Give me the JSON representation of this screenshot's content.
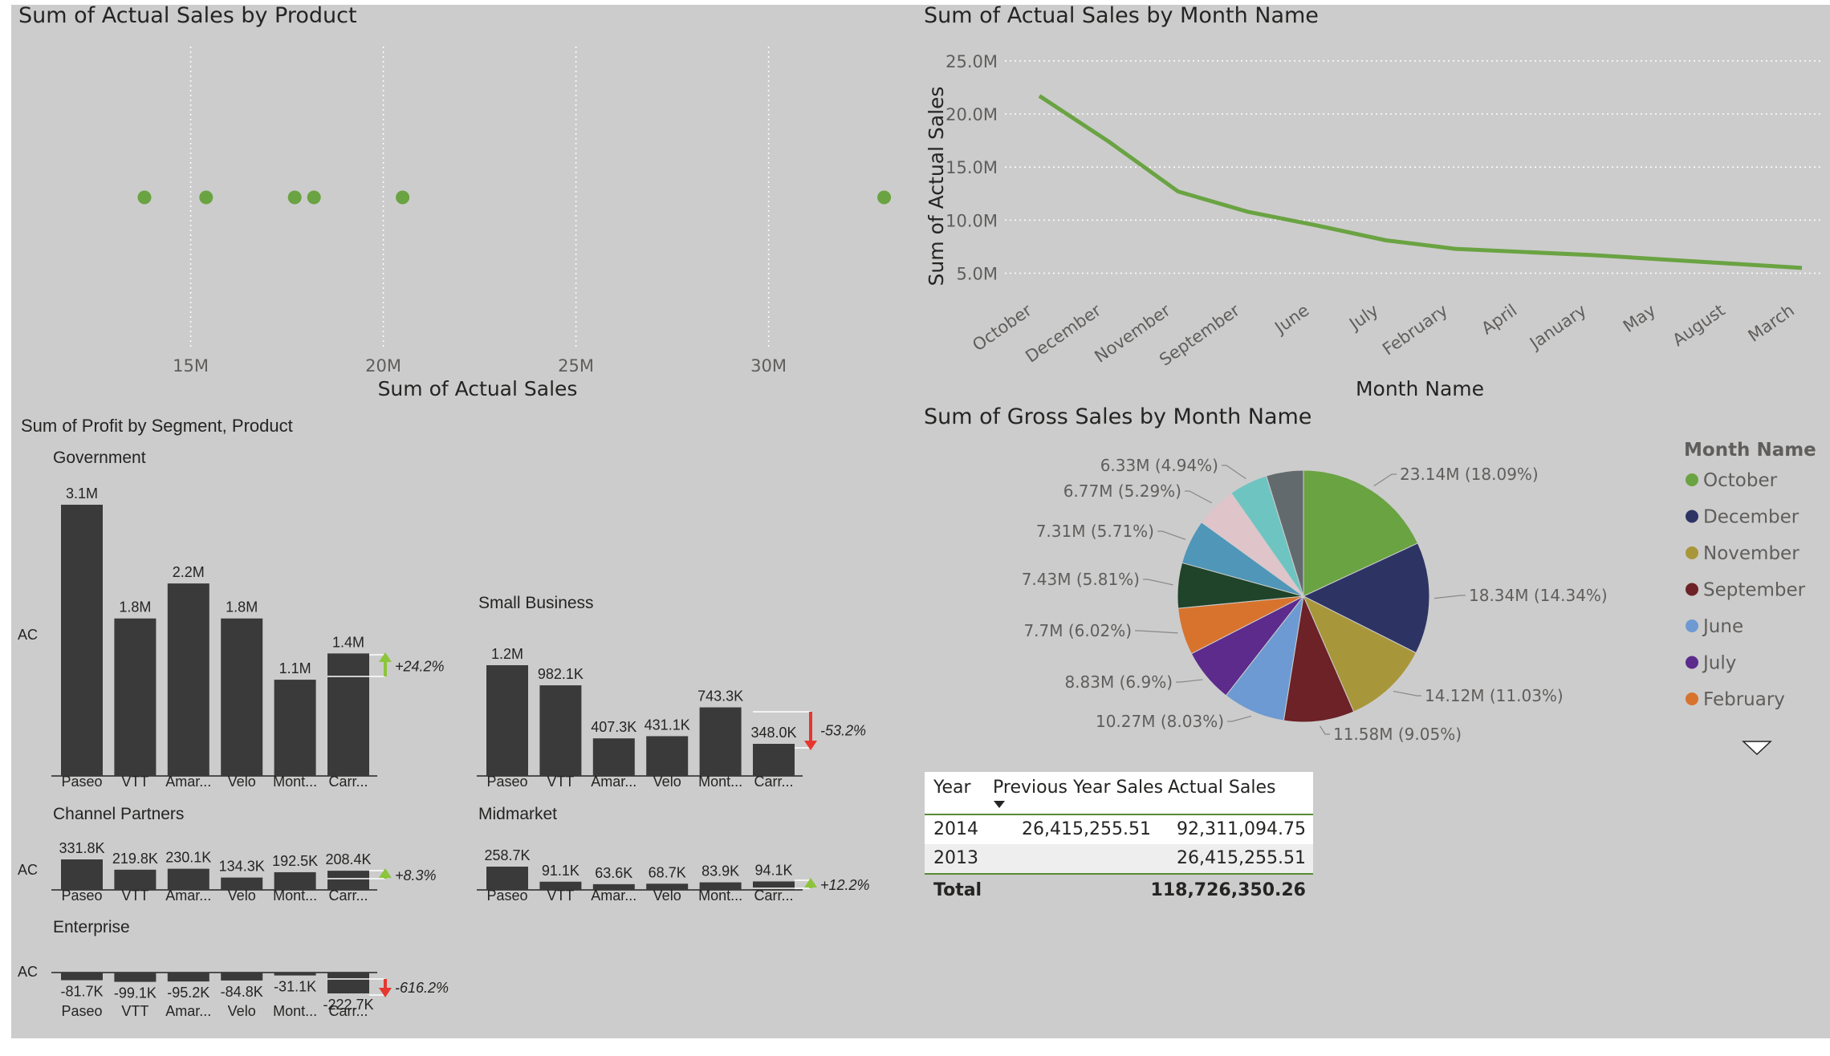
{
  "scatter": {
    "title": "Sum of Actual Sales by Product",
    "xlabel": "Sum of Actual Sales",
    "ticks": [
      "15M",
      "20M",
      "25M",
      "30M"
    ]
  },
  "line": {
    "title": "Sum of Actual Sales by Month Name",
    "xlabel": "Month Name",
    "ylabel": "Sum of Actual Sales",
    "yticks": [
      "25.0M",
      "20.0M",
      "15.0M",
      "10.0M",
      "5.0M"
    ]
  },
  "profit": {
    "title": "Sum of Profit by Segment, Product",
    "ac_label": "AC"
  },
  "pie": {
    "title": "Sum of Gross Sales by Month Name",
    "legend_title": "Month Name"
  },
  "table": {
    "headers": [
      "Year",
      "Previous Year Sales",
      "Actual Sales"
    ],
    "rows": [
      {
        "year": "2014",
        "prev": "26,415,255.51",
        "actual": "92,311,094.75"
      },
      {
        "year": "2013",
        "prev": "",
        "actual": "26,415,255.51"
      }
    ],
    "total_label": "Total",
    "total_value": "118,726,350.26"
  },
  "colors": {
    "green": "#6aa342",
    "bar": "#3a3a3a",
    "positive_arrow": "#8cc43c",
    "negative_arrow": "#e5372e"
  },
  "chart_data": [
    {
      "type": "scatter",
      "title": "Sum of Actual Sales by Product",
      "xlabel": "Sum of Actual Sales",
      "xlim": [
        10.8,
        33.3
      ],
      "x_ticks": [
        15,
        20,
        25,
        30
      ],
      "x_unit": "M",
      "points": [
        13.8,
        15.4,
        17.7,
        18.2,
        20.5,
        33.0
      ],
      "grid": true
    },
    {
      "type": "line",
      "title": "Sum of Actual Sales by Month Name",
      "xlabel": "Month Name",
      "ylabel": "Sum of Actual Sales",
      "categories": [
        "October",
        "December",
        "November",
        "September",
        "June",
        "July",
        "February",
        "April",
        "January",
        "May",
        "August",
        "March"
      ],
      "values": [
        21.7,
        17.4,
        12.7,
        10.8,
        9.5,
        8.1,
        7.3,
        7.0,
        6.7,
        6.3,
        5.9,
        5.5
      ],
      "ylim": [
        3.0,
        26.5
      ],
      "y_ticks": [
        25,
        20,
        15,
        10,
        5
      ],
      "y_unit": "M",
      "grid": true
    },
    {
      "type": "bar",
      "title": "Sum of Profit by Segment, Product",
      "categories": [
        "Paseo",
        "VTT",
        "Amar...",
        "Velo",
        "Mont...",
        "Carr..."
      ],
      "segments": [
        {
          "name": "Government",
          "values": [
            3.1,
            1.8,
            2.2,
            1.8,
            1.1,
            1.4
          ],
          "labels": [
            "3.1M",
            "1.8M",
            "2.2M",
            "1.8M",
            "1.1M",
            "1.4M"
          ],
          "delta": "+24.2%",
          "delta_dir": "up"
        },
        {
          "name": "Small Business",
          "values": [
            1.2,
            0.9821,
            0.4073,
            0.4311,
            0.7433,
            0.348
          ],
          "labels": [
            "1.2M",
            "982.1K",
            "407.3K",
            "431.1K",
            "743.3K",
            "348.0K"
          ],
          "delta": "-53.2%",
          "delta_dir": "down"
        },
        {
          "name": "Channel Partners",
          "values": [
            0.3318,
            0.2198,
            0.2301,
            0.1343,
            0.1925,
            0.2084
          ],
          "labels": [
            "331.8K",
            "219.8K",
            "230.1K",
            "134.3K",
            "192.5K",
            "208.4K"
          ],
          "delta": "+8.3%",
          "delta_dir": "up"
        },
        {
          "name": "Midmarket",
          "values": [
            0.2587,
            0.0911,
            0.0636,
            0.0687,
            0.0839,
            0.0941
          ],
          "labels": [
            "258.7K",
            "91.1K",
            "63.6K",
            "68.7K",
            "83.9K",
            "94.1K"
          ],
          "delta": "+12.2%",
          "delta_dir": "up"
        },
        {
          "name": "Enterprise",
          "values": [
            -0.0817,
            -0.0991,
            -0.0952,
            -0.0848,
            -0.0311,
            -0.2227
          ],
          "labels": [
            "-81.7K",
            "-99.1K",
            "-95.2K",
            "-84.8K",
            "-31.1K",
            "-222.7K"
          ],
          "delta": "-616.2%",
          "delta_dir": "down"
        }
      ]
    },
    {
      "type": "pie",
      "title": "Sum of Gross Sales by Month Name",
      "legend_title": "Month Name",
      "legend": "right",
      "slices": [
        {
          "name": "October",
          "value": 23.14,
          "label": "23.14M (18.09%)",
          "color": "#6aa342"
        },
        {
          "name": "December",
          "value": 18.34,
          "label": "18.34M (14.34%)",
          "color": "#2d3464"
        },
        {
          "name": "November",
          "value": 14.12,
          "label": "14.12M (11.03%)",
          "color": "#a8963a"
        },
        {
          "name": "September",
          "value": 11.58,
          "label": "11.58M (9.05%)",
          "color": "#6c2226"
        },
        {
          "name": "June",
          "value": 10.27,
          "label": "10.27M (8.03%)",
          "color": "#6d9ad2"
        },
        {
          "name": "July",
          "value": 8.83,
          "label": "8.83M (6.9%)",
          "color": "#5c2b8c"
        },
        {
          "name": "February",
          "value": 7.7,
          "label": "7.7M (6.02%)",
          "color": "#d8732d"
        },
        {
          "name": "",
          "value": 7.43,
          "label": "7.43M (5.81%)",
          "color": "#1f4429"
        },
        {
          "name": "",
          "value": 7.31,
          "label": "7.31M (5.71%)",
          "color": "#4f96b8"
        },
        {
          "name": "",
          "value": 6.77,
          "label": "6.77M (5.29%)",
          "color": "#dfc4ca"
        },
        {
          "name": "",
          "value": 6.33,
          "label": "6.33M (4.94%)",
          "color": "#6ec4c0"
        },
        {
          "name": "",
          "value": 6.1,
          "label": "",
          "color": "#636a6e"
        }
      ]
    }
  ]
}
